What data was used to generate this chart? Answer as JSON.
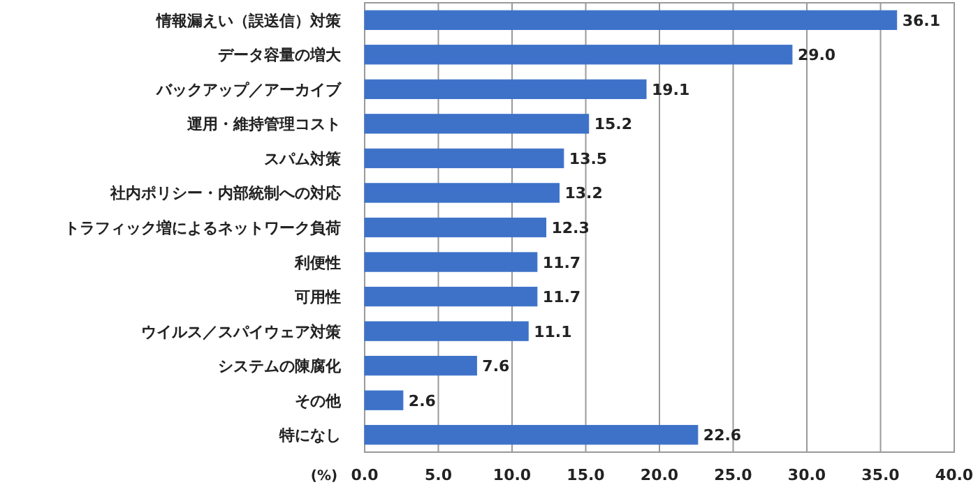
{
  "chart_data": {
    "type": "bar",
    "orientation": "horizontal",
    "xlabel": "(%)",
    "categories": [
      "情報漏えい（誤送信）対策",
      "データ容量の増大",
      "バックアップ／アーカイブ",
      "運用・維持管理コスト",
      "スパム対策",
      "社内ポリシー・内部統制への対応",
      "トラフィック増によるネットワーク負荷",
      "利便性",
      "可用性",
      "ウイルス／スパイウェア対策",
      "システムの陳腐化",
      "その他",
      "特になし"
    ],
    "values": [
      36.1,
      29.0,
      19.1,
      15.2,
      13.5,
      13.2,
      12.3,
      11.7,
      11.7,
      11.1,
      7.6,
      2.6,
      22.6
    ],
    "value_labels": [
      "36.1",
      "29.0",
      "19.1",
      "15.2",
      "13.5",
      "13.2",
      "12.3",
      "11.7",
      "11.7",
      "11.1",
      "7.6",
      "2.6",
      "22.6"
    ],
    "color": "#3d72c8",
    "xlim": [
      0,
      40
    ],
    "xticks": [
      {
        "value": 0,
        "label": "0.0"
      },
      {
        "value": 5,
        "label": "5.0"
      },
      {
        "value": 10,
        "label": "10.0"
      },
      {
        "value": 15,
        "label": "15.0"
      },
      {
        "value": 20,
        "label": "20.0"
      },
      {
        "value": 25,
        "label": "25.0"
      },
      {
        "value": 30,
        "label": "30.0"
      },
      {
        "value": 35,
        "label": "35.0"
      },
      {
        "value": 40,
        "label": "40.0"
      }
    ],
    "grid": "x"
  }
}
